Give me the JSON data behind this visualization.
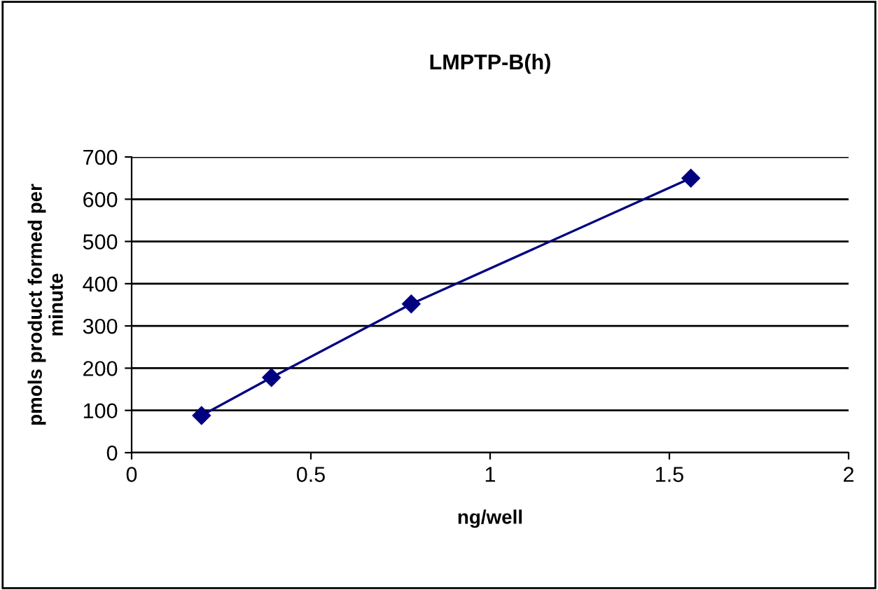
{
  "chart_data": {
    "type": "line",
    "title": "LMPTP-B(h)",
    "xlabel": "ng/well",
    "ylabel": "pmols product formed per\nminute",
    "x": [
      0.195,
      0.39,
      0.78,
      1.56
    ],
    "series": [
      {
        "color": "#000080",
        "values": [
          88,
          178,
          352,
          650
        ]
      }
    ],
    "xlim": [
      0,
      2
    ],
    "xticks": [
      0,
      0.5,
      1,
      1.5,
      2
    ],
    "ylim": [
      0,
      700
    ],
    "yticks": [
      0,
      100,
      200,
      300,
      400,
      500,
      600,
      700
    ],
    "grid": "y",
    "marker": "diamond",
    "line_style": "solid",
    "legend": false
  }
}
